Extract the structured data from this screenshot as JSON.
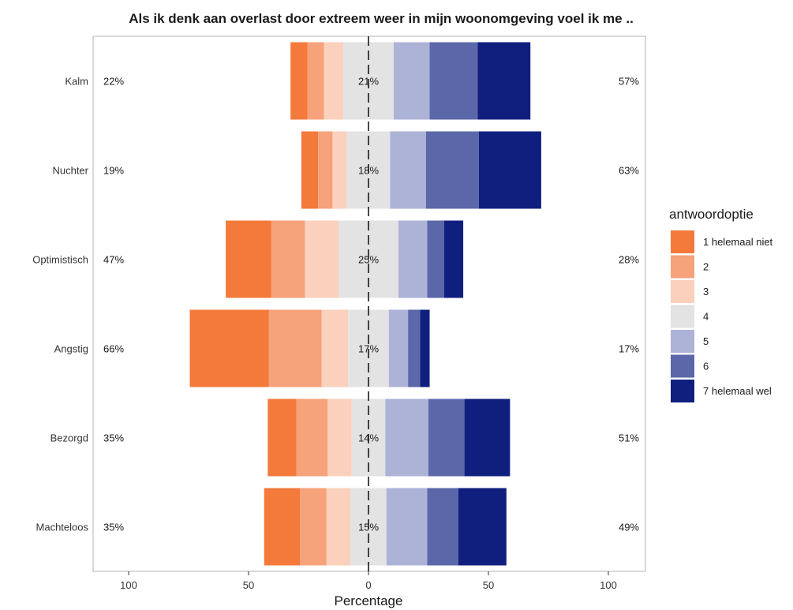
{
  "chart_data": {
    "type": "bar",
    "subtype": "diverging-stacked-horizontal",
    "title": "Als ik denk aan overlast door extreem weer in mijn woonomgeving voel ik me ..",
    "xlabel": "Percentage",
    "ylabel": "",
    "xlim": [
      -115,
      115
    ],
    "xticks": [
      -100,
      -50,
      0,
      50,
      100
    ],
    "xtick_labels": [
      "100",
      "50",
      "0",
      "50",
      "100"
    ],
    "grid": false,
    "legend": {
      "title": "antwoordoptie",
      "position": "right",
      "entries": [
        "1 helemaal niet",
        "2",
        "3",
        "4",
        "5",
        "6",
        "7 helemaal wel"
      ]
    },
    "colors": [
      "#F37A3B",
      "#F6A27A",
      "#FBD0BC",
      "#E3E3E3",
      "#ADB2D7",
      "#5B67A9",
      "#101F7E"
    ],
    "categories": [
      "Kalm",
      "Nuchter",
      "Optimistisch",
      "Angstig",
      "Bezorgd",
      "Machteloos"
    ],
    "series": [
      {
        "name": "1 helemaal niet",
        "values": [
          7,
          7,
          19,
          33,
          12,
          15
        ]
      },
      {
        "name": "2",
        "values": [
          7,
          6,
          14,
          22,
          13,
          11
        ]
      },
      {
        "name": "3",
        "values": [
          8,
          6,
          14,
          11,
          10,
          10
        ]
      },
      {
        "name": "4",
        "values": [
          21,
          18,
          25,
          17,
          14,
          15
        ]
      },
      {
        "name": "5",
        "values": [
          15,
          15,
          12,
          8,
          18,
          17
        ]
      },
      {
        "name": "6",
        "values": [
          20,
          22,
          7,
          5,
          15,
          13
        ]
      },
      {
        "name": "7 helemaal wel",
        "values": [
          22,
          26,
          8,
          4,
          19,
          20
        ]
      }
    ],
    "left_labels": [
      "22%",
      "19%",
      "47%",
      "66%",
      "35%",
      "35%"
    ],
    "center_labels": [
      "21%",
      "18%",
      "25%",
      "17%",
      "14%",
      "15%"
    ],
    "right_labels": [
      "57%",
      "63%",
      "28%",
      "17%",
      "51%",
      "49%"
    ]
  }
}
